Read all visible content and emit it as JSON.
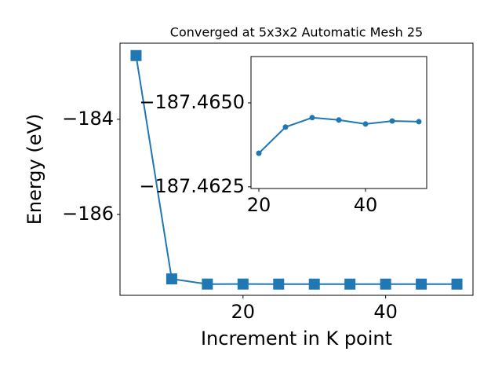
{
  "chart_data": [
    {
      "type": "line",
      "title": "Converged at 5x3x2 Automatic Mesh 25",
      "x_label": "Increment in K point",
      "y_label": "Energy (eV)",
      "x": [
        5,
        10,
        15,
        20,
        25,
        30,
        35,
        40,
        45,
        50
      ],
      "series": [
        {
          "color": "#1f77b4",
          "marker": "square",
          "values": [
            -182.66,
            -187.355,
            -187.4637,
            -187.4635,
            -187.46428,
            -187.46456,
            -187.46449,
            -187.46437,
            -187.46446,
            -187.46444
          ]
        }
      ],
      "xlim": [
        2.75,
        52.25
      ],
      "xticks": [
        20,
        40
      ],
      "ylim": [
        -187.7,
        -182.4
      ],
      "yticks": [
        {
          "value": -186,
          "label": "−186"
        },
        {
          "value": -184,
          "label": "−184"
        }
      ]
    },
    {
      "type": "line",
      "x": [
        20,
        25,
        30,
        35,
        40,
        45,
        50
      ],
      "series": [
        {
          "color": "#1f77b4",
          "marker": "circle",
          "values": [
            -187.4635,
            -187.46428,
            -187.46456,
            -187.46449,
            -187.46437,
            -187.46446,
            -187.46444
          ]
        }
      ],
      "xlim": [
        18.53,
        51.47
      ],
      "xticks": [
        20,
        40
      ],
      "ylim": [
        -187.46245,
        -187.46638
      ],
      "yticks": [
        {
          "value": -187.4625,
          "label": "−187.4625"
        },
        {
          "value": -187.465,
          "label": "−187.4650"
        }
      ]
    }
  ]
}
